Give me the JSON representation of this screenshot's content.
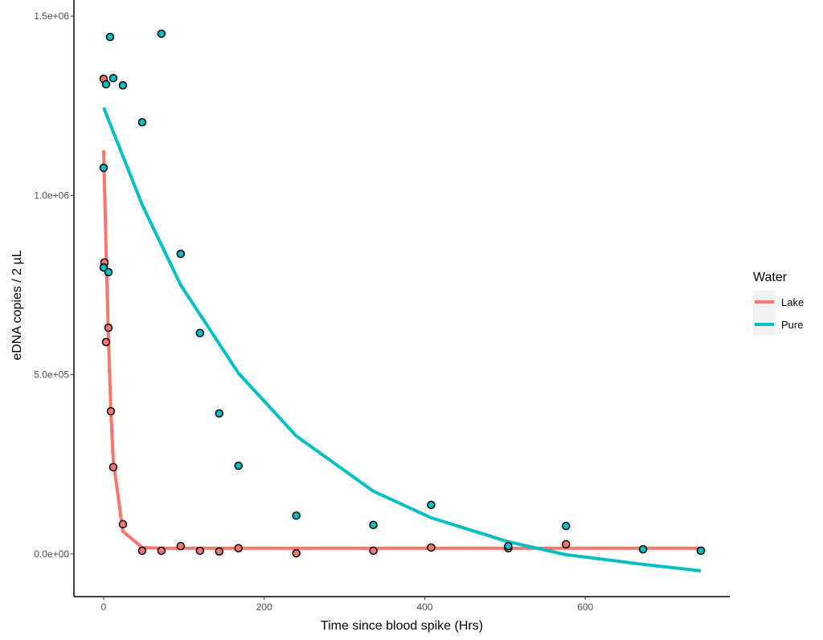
{
  "chart_data": {
    "type": "scatter",
    "xlabel": "Time since blood spike (Hrs)",
    "ylabel": "eDNA copies / 2 µL",
    "xlim": [
      -37,
      780
    ],
    "ylim": [
      -119000,
      1545000
    ],
    "x_ticks": [
      0,
      200,
      400,
      600
    ],
    "x_tick_labels": [
      "0",
      "200",
      "400",
      "600"
    ],
    "y_ticks": [
      0,
      500000,
      1000000,
      1500000
    ],
    "y_tick_labels": [
      "0.0e+00",
      "5.0e+05",
      "1.0e+06",
      "1.5e+06"
    ],
    "grid": false,
    "legend": {
      "title": "Water",
      "placement": "right",
      "entries": [
        "Lake",
        "Pure"
      ]
    },
    "series": [
      {
        "name": "Lake",
        "color": "#F8766D",
        "points": [
          [
            0,
            1325000
          ],
          [
            1,
            813000
          ],
          [
            3,
            591000
          ],
          [
            6,
            631000
          ],
          [
            9,
            398000
          ],
          [
            12,
            242000
          ],
          [
            24,
            83000
          ],
          [
            48,
            9000
          ],
          [
            72,
            9000
          ],
          [
            96,
            22000
          ],
          [
            120,
            9000
          ],
          [
            144,
            7000
          ],
          [
            168,
            16000
          ],
          [
            240,
            2000
          ],
          [
            336,
            9000
          ],
          [
            408,
            18000
          ],
          [
            504,
            16000
          ],
          [
            576,
            27000
          ],
          [
            672,
            13000
          ],
          [
            744,
            9000
          ]
        ],
        "fit": [
          [
            0,
            1126000
          ],
          [
            3,
            850000
          ],
          [
            6,
            600000
          ],
          [
            9,
            400000
          ],
          [
            12,
            260000
          ],
          [
            24,
            63000
          ],
          [
            48,
            18000
          ],
          [
            72,
            16000
          ],
          [
            168,
            16000
          ],
          [
            744,
            16000
          ]
        ]
      },
      {
        "name": "Pure",
        "color": "#00BFC4",
        "points": [
          [
            8,
            1442000
          ],
          [
            72,
            1451000
          ],
          [
            12,
            1327000
          ],
          [
            3,
            1310000
          ],
          [
            24,
            1307000
          ],
          [
            48,
            1204000
          ],
          [
            0,
            1077000
          ],
          [
            0,
            799000
          ],
          [
            6,
            786000
          ],
          [
            96,
            837000
          ],
          [
            120,
            616000
          ],
          [
            144,
            392000
          ],
          [
            168,
            246000
          ],
          [
            240,
            107000
          ],
          [
            336,
            81000
          ],
          [
            408,
            137000
          ],
          [
            504,
            22000
          ],
          [
            576,
            78000
          ],
          [
            672,
            13000
          ],
          [
            744,
            9000
          ]
        ],
        "fit": [
          [
            0,
            1245000
          ],
          [
            48,
            974000
          ],
          [
            96,
            750000
          ],
          [
            168,
            504000
          ],
          [
            240,
            329000
          ],
          [
            336,
            175000
          ],
          [
            408,
            101000
          ],
          [
            504,
            34000
          ],
          [
            576,
            -2000
          ],
          [
            672,
            -29000
          ],
          [
            744,
            -47000
          ]
        ]
      }
    ]
  }
}
